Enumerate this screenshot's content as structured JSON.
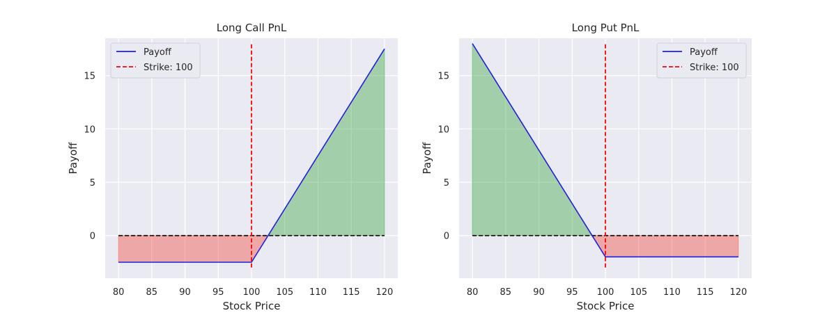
{
  "chart_data": [
    {
      "type": "line",
      "title": "Long Call PnL",
      "xlabel": "Stock Price",
      "ylabel": "Payoff",
      "xlim": [
        78,
        122
      ],
      "ylim": [
        -4,
        18.5
      ],
      "xticks": [
        80,
        85,
        90,
        95,
        100,
        105,
        110,
        115,
        120
      ],
      "yticks": [
        0,
        5,
        10,
        15
      ],
      "grid": true,
      "legend_position": "top-left",
      "legend": [
        "Payoff",
        "Strike: 100"
      ],
      "strike": 100,
      "vline_range": [
        -3,
        18
      ],
      "premium": 2.5,
      "payoff_kind": "call",
      "x_range": [
        80,
        120
      ],
      "series": [
        {
          "name": "Payoff",
          "color": "#1f1fdf",
          "x": [
            80,
            100,
            120
          ],
          "y": [
            -2.5,
            -2.5,
            17.5
          ]
        }
      ],
      "profit_color": "#4caf50",
      "loss_color": "#f44336"
    },
    {
      "type": "line",
      "title": "Long Put PnL",
      "xlabel": "Stock Price",
      "ylabel": "Payoff",
      "xlim": [
        78,
        122
      ],
      "ylim": [
        -4,
        18.5
      ],
      "xticks": [
        80,
        85,
        90,
        95,
        100,
        105,
        110,
        115,
        120
      ],
      "yticks": [
        0,
        5,
        10,
        15
      ],
      "grid": true,
      "legend_position": "top-right",
      "legend": [
        "Payoff",
        "Strike: 100"
      ],
      "strike": 100,
      "vline_range": [
        -3,
        18
      ],
      "premium": 2,
      "payoff_kind": "put",
      "x_range": [
        80,
        120
      ],
      "series": [
        {
          "name": "Payoff",
          "color": "#1f1fdf",
          "x": [
            80,
            100,
            120
          ],
          "y": [
            18,
            -2,
            -2
          ]
        }
      ],
      "profit_color": "#4caf50",
      "loss_color": "#f44336"
    }
  ]
}
